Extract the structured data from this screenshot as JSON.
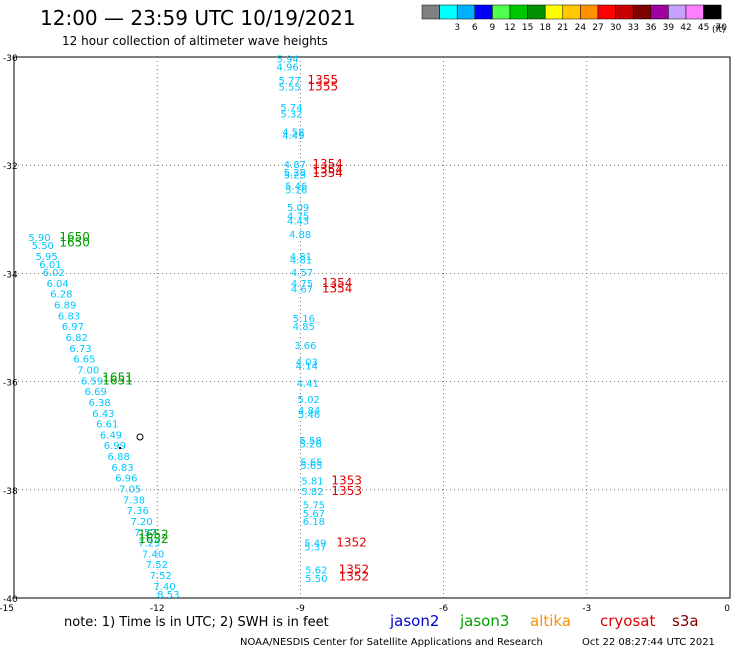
{
  "header": {
    "title": "12:00 — 23:59 UTC 10/19/2021",
    "subtitle": "12 hour collection of altimeter wave heights"
  },
  "legend": {
    "unit": "(ft)",
    "bins": [
      {
        "label": "",
        "color": "#808080"
      },
      {
        "label": "3",
        "color": "#00ffff"
      },
      {
        "label": "6",
        "color": "#00b0ff"
      },
      {
        "label": "9",
        "color": "#0000ff"
      },
      {
        "label": "12",
        "color": "#50ff50"
      },
      {
        "label": "15",
        "color": "#00c800"
      },
      {
        "label": "18",
        "color": "#009000"
      },
      {
        "label": "21",
        "color": "#ffff00"
      },
      {
        "label": "24",
        "color": "#ffc800"
      },
      {
        "label": "27",
        "color": "#ff9000"
      },
      {
        "label": "30",
        "color": "#ff0000"
      },
      {
        "label": "33",
        "color": "#c80000"
      },
      {
        "label": "36",
        "color": "#800000"
      },
      {
        "label": "39",
        "color": "#a000a0"
      },
      {
        "label": "42",
        "color": "#c8a0ff"
      },
      {
        "label": "45",
        "color": "#ff80ff"
      },
      {
        "label": "70",
        "color": "#000000"
      }
    ]
  },
  "footer": {
    "note": "note:  1) Time is in UTC;  2) SWH is in feet",
    "credit": "NOAA/NESDIS Center for Satellite Applications and Research",
    "timestamp": "Oct 22 08:27:44 UTC 2021"
  },
  "satellites": [
    {
      "name": "jason2",
      "color": "#0000d0"
    },
    {
      "name": "jason3",
      "color": "#00a000"
    },
    {
      "name": "altika",
      "color": "#ff9000"
    },
    {
      "name": "cryosat",
      "color": "#e00000"
    },
    {
      "name": "s3a",
      "color": "#800000"
    }
  ],
  "chart_data": {
    "type": "scatter",
    "xlim": [
      -15,
      0
    ],
    "ylim": [
      -40,
      -30
    ],
    "xticks": [
      -15,
      -12,
      -9,
      -6,
      -3,
      0
    ],
    "yticks": [
      -30,
      -32,
      -34,
      -36,
      -38,
      -40
    ],
    "grid": true,
    "series": [
      {
        "satellite": "jason3",
        "color": "#00c8ff",
        "points": [
          {
            "x": -14.7,
            "y": -33.4,
            "v": "5.90"
          },
          {
            "x": -14.63,
            "y": -33.55,
            "v": "5.50"
          },
          {
            "x": -14.55,
            "y": -33.75,
            "v": "5.95"
          },
          {
            "x": -14.47,
            "y": -33.9,
            "v": "6.01"
          },
          {
            "x": -14.4,
            "y": -34.05,
            "v": "6.02"
          },
          {
            "x": -14.32,
            "y": -34.25,
            "v": "6.04"
          },
          {
            "x": -14.24,
            "y": -34.45,
            "v": "6.28"
          },
          {
            "x": -14.16,
            "y": -34.65,
            "v": "6.89"
          },
          {
            "x": -14.08,
            "y": -34.85,
            "v": "6.83"
          },
          {
            "x": -14.0,
            "y": -35.05,
            "v": "6.97"
          },
          {
            "x": -13.92,
            "y": -35.25,
            "v": "6.82"
          },
          {
            "x": -13.84,
            "y": -35.45,
            "v": "6.73"
          },
          {
            "x": -13.76,
            "y": -35.65,
            "v": "6.65"
          },
          {
            "x": -13.68,
            "y": -35.85,
            "v": "7.00"
          },
          {
            "x": -13.6,
            "y": -36.05,
            "v": "6.59"
          },
          {
            "x": -13.52,
            "y": -36.25,
            "v": "6.69"
          },
          {
            "x": -13.44,
            "y": -36.45,
            "v": "6.38"
          },
          {
            "x": -13.36,
            "y": -36.65,
            "v": "6.43"
          },
          {
            "x": -13.28,
            "y": -36.85,
            "v": "6.61"
          },
          {
            "x": -13.2,
            "y": -37.05,
            "v": "6.49"
          },
          {
            "x": -13.12,
            "y": -37.25,
            "v": "6.99"
          },
          {
            "x": -13.04,
            "y": -37.45,
            "v": "6.88"
          },
          {
            "x": -12.96,
            "y": -37.65,
            "v": "6.83"
          },
          {
            "x": -12.88,
            "y": -37.85,
            "v": "6.96"
          },
          {
            "x": -12.8,
            "y": -38.05,
            "v": "7.05"
          },
          {
            "x": -12.72,
            "y": -38.25,
            "v": "7.38"
          },
          {
            "x": -12.64,
            "y": -38.45,
            "v": "7.36"
          },
          {
            "x": -12.56,
            "y": -38.65,
            "v": "7.20"
          },
          {
            "x": -12.48,
            "y": -38.85,
            "v": "7.57"
          },
          {
            "x": -12.4,
            "y": -39.05,
            "v": "7.25"
          },
          {
            "x": -12.32,
            "y": -39.25,
            "v": "7.40"
          },
          {
            "x": -12.24,
            "y": -39.45,
            "v": "7.52"
          },
          {
            "x": -12.16,
            "y": -39.65,
            "v": "7.52"
          },
          {
            "x": -12.08,
            "y": -39.85,
            "v": "7.40"
          },
          {
            "x": -12.0,
            "y": -40.0,
            "v": "8.53"
          }
        ],
        "times": [
          {
            "x": -14.05,
            "y": -33.4,
            "v": "1650"
          },
          {
            "x": -14.05,
            "y": -33.5,
            "v": "1650"
          },
          {
            "x": -13.15,
            "y": -36.0,
            "v": "1651"
          },
          {
            "x": -13.15,
            "y": -36.05,
            "v": "1651"
          },
          {
            "x": -12.4,
            "y": -38.9,
            "v": "1652"
          },
          {
            "x": -12.4,
            "y": -38.98,
            "v": "1652"
          }
        ]
      },
      {
        "satellite": "cryosat",
        "color": "#00c8ff",
        "points": [
          {
            "x": -9.5,
            "y": -30.1,
            "v": "5.94"
          },
          {
            "x": -9.5,
            "y": -30.25,
            "v": "4.96"
          },
          {
            "x": -9.46,
            "y": -30.5,
            "v": "5.77"
          },
          {
            "x": -9.46,
            "y": -30.62,
            "v": "5.55"
          },
          {
            "x": -9.42,
            "y": -31.0,
            "v": "5.74"
          },
          {
            "x": -9.42,
            "y": -31.12,
            "v": "5.32"
          },
          {
            "x": -9.38,
            "y": -31.45,
            "v": "4.58"
          },
          {
            "x": -9.38,
            "y": -31.52,
            "v": "4.49"
          },
          {
            "x": -9.35,
            "y": -32.05,
            "v": "4.87"
          },
          {
            "x": -9.35,
            "y": -32.2,
            "v": "5.28"
          },
          {
            "x": -9.35,
            "y": -32.25,
            "v": "5.23"
          },
          {
            "x": -9.32,
            "y": -32.45,
            "v": "5.46"
          },
          {
            "x": -9.32,
            "y": -32.52,
            "v": "5.16"
          },
          {
            "x": -9.28,
            "y": -32.85,
            "v": "5.09"
          },
          {
            "x": -9.28,
            "y": -33.0,
            "v": "4.75"
          },
          {
            "x": -9.28,
            "y": -33.1,
            "v": "4.43"
          },
          {
            "x": -9.24,
            "y": -33.35,
            "v": "4.88"
          },
          {
            "x": -9.22,
            "y": -33.75,
            "v": "4.81"
          },
          {
            "x": -9.22,
            "y": -33.82,
            "v": "4.81"
          },
          {
            "x": -9.2,
            "y": -34.05,
            "v": "4.57"
          },
          {
            "x": -9.2,
            "y": -34.25,
            "v": "4.75"
          },
          {
            "x": -9.2,
            "y": -34.35,
            "v": "4.67"
          },
          {
            "x": -9.16,
            "y": -34.9,
            "v": "5.16"
          },
          {
            "x": -9.16,
            "y": -35.05,
            "v": "4.85"
          },
          {
            "x": -9.13,
            "y": -35.4,
            "v": "3.66"
          },
          {
            "x": -9.1,
            "y": -35.7,
            "v": "4.03"
          },
          {
            "x": -9.1,
            "y": -35.78,
            "v": "4.14"
          },
          {
            "x": -9.08,
            "y": -36.1,
            "v": "4.41"
          },
          {
            "x": -9.06,
            "y": -36.4,
            "v": "5.02"
          },
          {
            "x": -9.05,
            "y": -36.6,
            "v": "4.84"
          },
          {
            "x": -9.05,
            "y": -36.67,
            "v": "5.46"
          },
          {
            "x": -9.02,
            "y": -37.15,
            "v": "5.58"
          },
          {
            "x": -9.02,
            "y": -37.22,
            "v": "5.26"
          },
          {
            "x": -9.0,
            "y": -37.55,
            "v": "5.65"
          },
          {
            "x": -9.0,
            "y": -37.62,
            "v": "5.65"
          },
          {
            "x": -8.98,
            "y": -37.9,
            "v": "5.81"
          },
          {
            "x": -8.98,
            "y": -38.1,
            "v": "5.82"
          },
          {
            "x": -8.95,
            "y": -38.35,
            "v": "5.75"
          },
          {
            "x": -8.95,
            "y": -38.5,
            "v": "5.67"
          },
          {
            "x": -8.95,
            "y": -38.65,
            "v": "6.18"
          },
          {
            "x": -8.92,
            "y": -39.05,
            "v": "5.49"
          },
          {
            "x": -8.92,
            "y": -39.12,
            "v": "5.37"
          },
          {
            "x": -8.9,
            "y": -39.55,
            "v": "5.62"
          },
          {
            "x": -8.9,
            "y": -39.7,
            "v": "5.50"
          }
        ],
        "times": [
          {
            "x": -8.85,
            "y": -30.5,
            "v": "1355"
          },
          {
            "x": -8.85,
            "y": -30.62,
            "v": "1355"
          },
          {
            "x": -8.75,
            "y": -32.05,
            "v": "1354"
          },
          {
            "x": -8.75,
            "y": -32.15,
            "v": "1354"
          },
          {
            "x": -8.75,
            "y": -32.22,
            "v": "1354"
          },
          {
            "x": -8.55,
            "y": -34.25,
            "v": "1354"
          },
          {
            "x": -8.55,
            "y": -34.35,
            "v": "1354"
          },
          {
            "x": -8.35,
            "y": -37.9,
            "v": "1353"
          },
          {
            "x": -8.35,
            "y": -38.1,
            "v": "1353"
          },
          {
            "x": -8.25,
            "y": -39.05,
            "v": "1352"
          },
          {
            "x": -8.2,
            "y": -39.55,
            "v": "1352"
          },
          {
            "x": -8.2,
            "y": -39.68,
            "v": "1352"
          }
        ]
      }
    ]
  }
}
